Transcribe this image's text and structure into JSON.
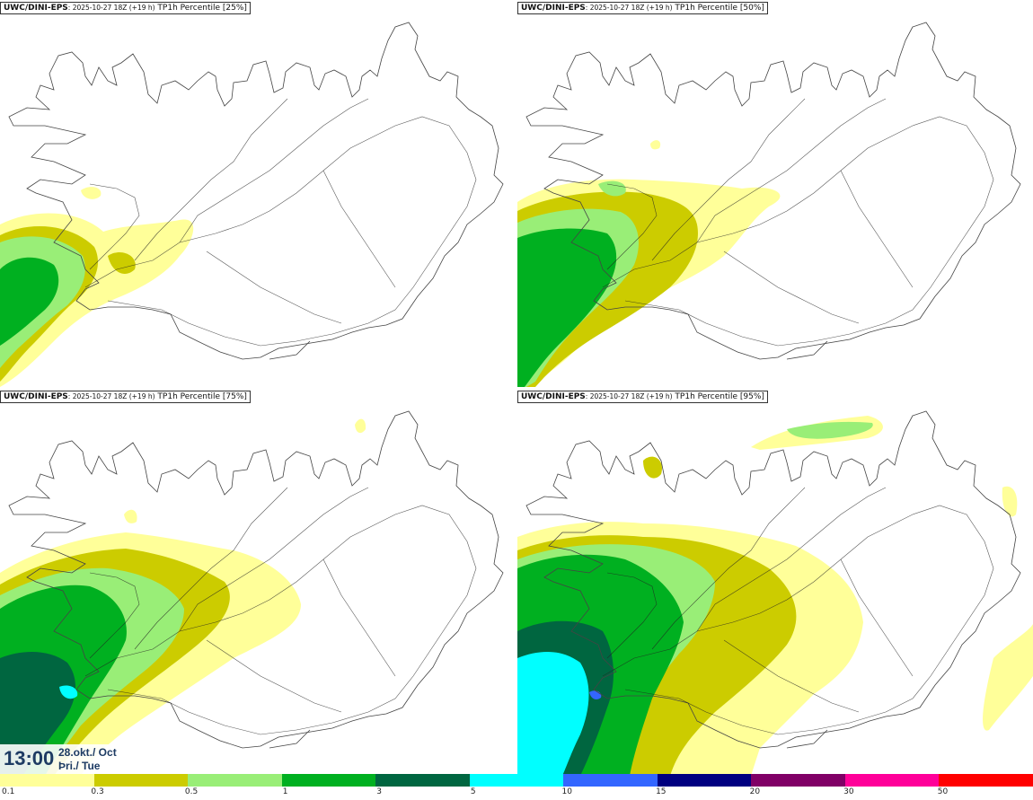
{
  "panels": [
    {
      "model": "UWC/DINI-EPS",
      "run": ": 2025-10-27 18Z (+19 h)",
      "product": " TP1h Percentile [25%]"
    },
    {
      "model": "UWC/DINI-EPS",
      "run": ": 2025-10-27 18Z (+19 h)",
      "product": " TP1h Percentile [50%]"
    },
    {
      "model": "UWC/DINI-EPS",
      "run": ": 2025-10-27 18Z (+19 h)",
      "product": " TP1h Percentile [75%]"
    },
    {
      "model": "UWC/DINI-EPS",
      "run": ": 2025-10-27 18Z (+19 h)",
      "product": " TP1h Percentile [95%]"
    }
  ],
  "valid_time": {
    "hour": "13:00",
    "date_line1": "28.okt./ Oct",
    "date_line2": "Þri./ Tue"
  },
  "colorbar": {
    "labels": [
      "0.1",
      "0.3",
      "0.5",
      "1",
      "3",
      "5",
      "10",
      "15",
      "20",
      "30",
      "50"
    ],
    "colors": [
      "#ffff99",
      "#cccc00",
      "#99ee77",
      "#00b020",
      "#006640",
      "#00ffff",
      "#3366ff",
      "#000080",
      "#800066",
      "#ff0099",
      "#ff0000"
    ]
  },
  "colors": {
    "coast": "#444444",
    "roads": "#222222"
  }
}
